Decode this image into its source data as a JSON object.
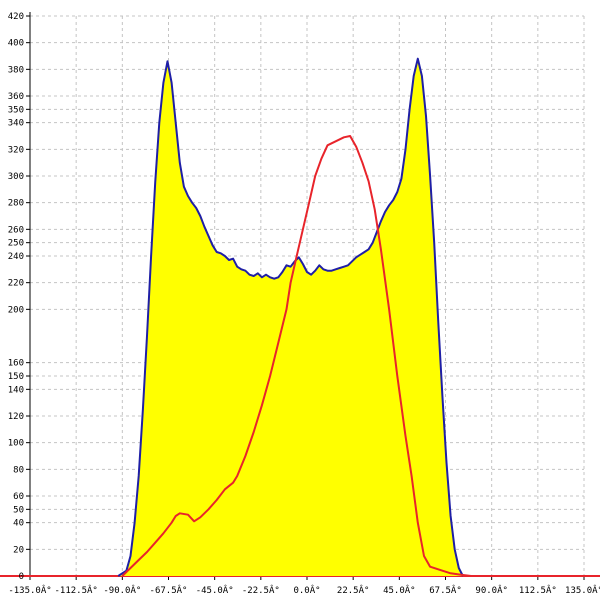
{
  "chart_data": {
    "type": "area",
    "title": "",
    "xlabel": "",
    "ylabel": "",
    "xlim": [
      -135,
      135
    ],
    "ylim": [
      0,
      420
    ],
    "grid": true,
    "x_ticks": [
      -135,
      -112.5,
      -90,
      -67.5,
      -45,
      -22.5,
      0,
      22.5,
      45,
      67.5,
      90,
      112.5,
      135
    ],
    "x_tick_labels": [
      "-135.0Â°",
      "-112.5Â°",
      "-90.0Â°",
      "-67.5Â°",
      "-45.0Â°",
      "-22.5Â°",
      "0.0Â°",
      "22.5Â°",
      "45.0Â°",
      "67.5Â°",
      "90.0Â°",
      "112.5Â°",
      "135.0Â°"
    ],
    "y_ticks": [
      0,
      20,
      40,
      50,
      60,
      80,
      100,
      120,
      140,
      150,
      160,
      200,
      220,
      240,
      250,
      260,
      280,
      300,
      320,
      340,
      350,
      360,
      380,
      400,
      420
    ],
    "y_tick_labels": [
      "0",
      "20",
      "40",
      "50",
      "60",
      "80",
      "100",
      "120",
      "140",
      "150",
      "160",
      "200",
      "220",
      "240",
      "250",
      "260",
      "280",
      "300",
      "320",
      "340",
      "350",
      "360",
      "380",
      "400",
      "420"
    ],
    "series": [
      {
        "color": "#1f1fa6",
        "fill": "#ffff00",
        "points": [
          [
            -92,
            0
          ],
          [
            -88,
            4
          ],
          [
            -86,
            15
          ],
          [
            -84,
            40
          ],
          [
            -82,
            75
          ],
          [
            -80,
            125
          ],
          [
            -78,
            180
          ],
          [
            -76,
            240
          ],
          [
            -74,
            295
          ],
          [
            -72,
            340
          ],
          [
            -70,
            370
          ],
          [
            -68,
            386
          ],
          [
            -66,
            370
          ],
          [
            -64,
            340
          ],
          [
            -62,
            310
          ],
          [
            -60,
            292
          ],
          [
            -58,
            285
          ],
          [
            -56,
            280
          ],
          [
            -54,
            276
          ],
          [
            -52,
            270
          ],
          [
            -50,
            262
          ],
          [
            -48,
            255
          ],
          [
            -46,
            248
          ],
          [
            -44,
            243
          ],
          [
            -42,
            242
          ],
          [
            -40,
            240
          ],
          [
            -38,
            237
          ],
          [
            -36,
            238
          ],
          [
            -34,
            232
          ],
          [
            -32,
            230
          ],
          [
            -30,
            229
          ],
          [
            -28,
            226
          ],
          [
            -26,
            225
          ],
          [
            -24,
            227
          ],
          [
            -22,
            224
          ],
          [
            -20,
            226
          ],
          [
            -18,
            224
          ],
          [
            -16,
            223
          ],
          [
            -14,
            224
          ],
          [
            -12,
            228
          ],
          [
            -10,
            233
          ],
          [
            -8,
            232
          ],
          [
            -6,
            236
          ],
          [
            -4,
            239
          ],
          [
            -2,
            234
          ],
          [
            0,
            228
          ],
          [
            2,
            226
          ],
          [
            4,
            229
          ],
          [
            6,
            233
          ],
          [
            8,
            230
          ],
          [
            10,
            229
          ],
          [
            12,
            229
          ],
          [
            14,
            230
          ],
          [
            16,
            231
          ],
          [
            18,
            232
          ],
          [
            20,
            233
          ],
          [
            22,
            236
          ],
          [
            24,
            239
          ],
          [
            26,
            241
          ],
          [
            28,
            243
          ],
          [
            30,
            245
          ],
          [
            32,
            250
          ],
          [
            34,
            258
          ],
          [
            36,
            266
          ],
          [
            38,
            273
          ],
          [
            40,
            278
          ],
          [
            42,
            282
          ],
          [
            44,
            288
          ],
          [
            46,
            298
          ],
          [
            48,
            320
          ],
          [
            50,
            350
          ],
          [
            52,
            375
          ],
          [
            54,
            388
          ],
          [
            56,
            375
          ],
          [
            58,
            345
          ],
          [
            60,
            300
          ],
          [
            62,
            250
          ],
          [
            64,
            190
          ],
          [
            66,
            135
          ],
          [
            68,
            85
          ],
          [
            70,
            45
          ],
          [
            72,
            20
          ],
          [
            74,
            6
          ],
          [
            76,
            0
          ]
        ]
      },
      {
        "color": "#e8242b",
        "points": [
          [
            -90,
            0
          ],
          [
            -86,
            6
          ],
          [
            -82,
            12
          ],
          [
            -78,
            18
          ],
          [
            -74,
            25
          ],
          [
            -70,
            32
          ],
          [
            -66,
            40
          ],
          [
            -64,
            45
          ],
          [
            -62,
            47
          ],
          [
            -58,
            46
          ],
          [
            -55,
            41
          ],
          [
            -52,
            44
          ],
          [
            -48,
            50
          ],
          [
            -44,
            57
          ],
          [
            -40,
            65
          ],
          [
            -36,
            70
          ],
          [
            -34,
            75
          ],
          [
            -30,
            90
          ],
          [
            -26,
            108
          ],
          [
            -22,
            128
          ],
          [
            -18,
            150
          ],
          [
            -14,
            175
          ],
          [
            -10,
            200
          ],
          [
            -8,
            220
          ],
          [
            -5,
            240
          ],
          [
            -2,
            260
          ],
          [
            1,
            280
          ],
          [
            4,
            300
          ],
          [
            7,
            313
          ],
          [
            10,
            323
          ],
          [
            14,
            326
          ],
          [
            18,
            329
          ],
          [
            21,
            330
          ],
          [
            24,
            322
          ],
          [
            27,
            310
          ],
          [
            30,
            296
          ],
          [
            33,
            275
          ],
          [
            36,
            245
          ],
          [
            40,
            200
          ],
          [
            44,
            150
          ],
          [
            48,
            105
          ],
          [
            51,
            75
          ],
          [
            54,
            40
          ],
          [
            57,
            15
          ],
          [
            60,
            7
          ],
          [
            66,
            4
          ],
          [
            70,
            2
          ],
          [
            75,
            1
          ],
          [
            80,
            0
          ],
          [
            135,
            0
          ]
        ]
      }
    ]
  }
}
